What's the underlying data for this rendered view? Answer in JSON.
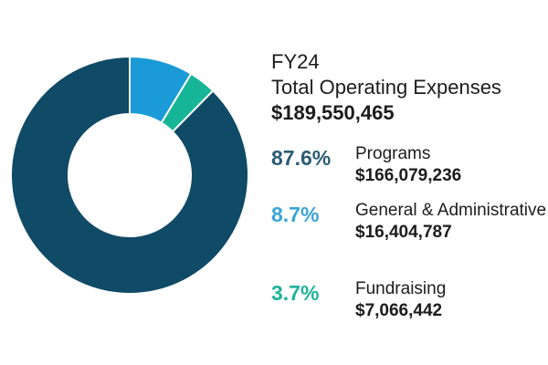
{
  "header": {
    "year": "FY24",
    "title": "Total Operating Expenses",
    "total": "$189,550,465"
  },
  "chart_data": {
    "type": "pie",
    "donut": true,
    "start_angle_deg": 0,
    "categories": [
      "Programs",
      "General & Administrative",
      "Fundraising"
    ],
    "values": [
      166079236,
      16404787,
      7066442
    ],
    "percentages": [
      "87.6%",
      "8.7%",
      "3.7%"
    ],
    "colors": [
      "#0f4a66",
      "#1a9ad6",
      "#17b597"
    ],
    "amount_labels": [
      "$166,079,236",
      "$16,404,787",
      "$7,066,442"
    ]
  },
  "legend": {
    "items": [
      {
        "pct": "87.6%",
        "label": "Programs",
        "amount": "$166,079,236",
        "color": "#2a5c74"
      },
      {
        "pct": "8.7%",
        "label": "General & Administrative",
        "amount": "$16,404,787",
        "color": "#3aa4d8"
      },
      {
        "pct": "3.7%",
        "label": "Fundraising",
        "amount": "$7,066,442",
        "color": "#1fb49a"
      }
    ]
  }
}
